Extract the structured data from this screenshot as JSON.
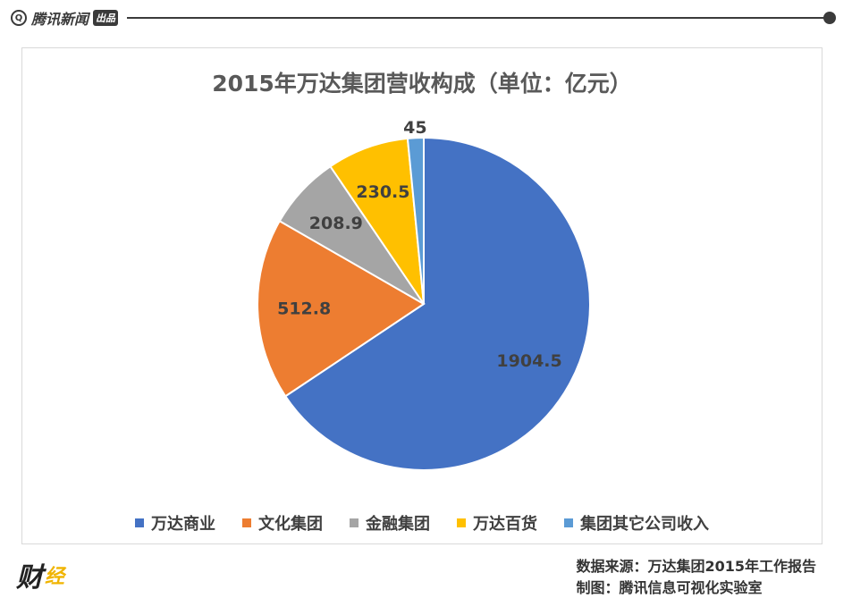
{
  "header": {
    "brand_name": "腾讯新闻",
    "brand_tag": "出品",
    "brand_mark": "Q"
  },
  "chart_data": {
    "type": "pie",
    "title": "2015年万达集团营收构成（单位：亿元）",
    "legend_position": "bottom",
    "slices": [
      {
        "name": "万达商业",
        "value": 1904.5,
        "label": "1904.5",
        "color": "#4472c4"
      },
      {
        "name": "文化集团",
        "value": 512.8,
        "label": "512.8",
        "color": "#ed7d31"
      },
      {
        "name": "金融集团",
        "value": 208.9,
        "label": "208.9",
        "color": "#a5a5a5"
      },
      {
        "name": "万达百货",
        "value": 230.5,
        "label": "230.5",
        "color": "#ffc000"
      },
      {
        "name": "集团其它公司收入",
        "value": 45,
        "label": "45",
        "color": "#5b9bd5"
      }
    ]
  },
  "footer": {
    "logo_text": "财",
    "logo_accent": "经",
    "source": "数据来源：万达集团2015年工作报告",
    "credit": "制图：腾讯信息可视化实验室"
  }
}
